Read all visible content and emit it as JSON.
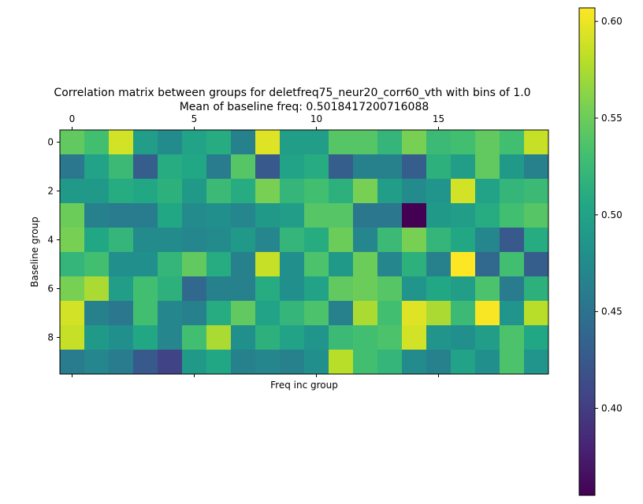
{
  "chart_data": {
    "type": "heatmap",
    "title_line1": "Correlation matrix between groups for deletfreq75_neur20_corr60_vth with bins of 1.0",
    "title_line2": "Mean of baseline freq: 0.5018417200716088",
    "xlabel": "Freq inc group",
    "ylabel": "Baseline group",
    "xticks": [
      "0",
      "5",
      "10",
      "15"
    ],
    "yticks": [
      "0",
      "2",
      "4",
      "6",
      "8"
    ],
    "colormap": "viridis",
    "vmin": 0.355,
    "vmax": 0.607,
    "colorbar_ticks": [
      "0.40",
      "0.45",
      "0.50",
      "0.55",
      "0.60"
    ],
    "values": [
      [
        0.545,
        0.53,
        0.59,
        0.495,
        0.475,
        0.5,
        0.51,
        0.465,
        0.595,
        0.495,
        0.495,
        0.54,
        0.54,
        0.52,
        0.555,
        0.525,
        0.53,
        0.545,
        0.53,
        0.585
      ],
      [
        0.455,
        0.5,
        0.525,
        0.43,
        0.51,
        0.505,
        0.46,
        0.54,
        0.425,
        0.5,
        0.51,
        0.43,
        0.465,
        0.465,
        0.43,
        0.515,
        0.495,
        0.545,
        0.49,
        0.465
      ],
      [
        0.49,
        0.49,
        0.51,
        0.505,
        0.515,
        0.49,
        0.525,
        0.51,
        0.555,
        0.52,
        0.53,
        0.515,
        0.555,
        0.495,
        0.475,
        0.485,
        0.59,
        0.5,
        0.52,
        0.525
      ],
      [
        0.55,
        0.465,
        0.46,
        0.46,
        0.505,
        0.475,
        0.48,
        0.47,
        0.49,
        0.495,
        0.54,
        0.54,
        0.455,
        0.455,
        0.355,
        0.49,
        0.495,
        0.51,
        0.53,
        0.54
      ],
      [
        0.555,
        0.505,
        0.52,
        0.475,
        0.475,
        0.47,
        0.475,
        0.49,
        0.47,
        0.52,
        0.51,
        0.55,
        0.47,
        0.525,
        0.555,
        0.52,
        0.505,
        0.47,
        0.425,
        0.51
      ],
      [
        0.52,
        0.53,
        0.48,
        0.48,
        0.52,
        0.545,
        0.51,
        0.465,
        0.585,
        0.48,
        0.535,
        0.49,
        0.55,
        0.47,
        0.515,
        0.465,
        0.607,
        0.44,
        0.53,
        0.43
      ],
      [
        0.555,
        0.575,
        0.495,
        0.53,
        0.515,
        0.44,
        0.465,
        0.465,
        0.51,
        0.48,
        0.5,
        0.545,
        0.55,
        0.54,
        0.485,
        0.505,
        0.495,
        0.535,
        0.46,
        0.515
      ],
      [
        0.59,
        0.465,
        0.455,
        0.53,
        0.47,
        0.465,
        0.51,
        0.545,
        0.5,
        0.52,
        0.535,
        0.465,
        0.575,
        0.53,
        0.595,
        0.575,
        0.525,
        0.605,
        0.485,
        0.58
      ],
      [
        0.585,
        0.49,
        0.48,
        0.505,
        0.47,
        0.53,
        0.575,
        0.48,
        0.515,
        0.5,
        0.485,
        0.525,
        0.53,
        0.535,
        0.59,
        0.485,
        0.48,
        0.495,
        0.535,
        0.505
      ],
      [
        0.46,
        0.47,
        0.46,
        0.425,
        0.405,
        0.49,
        0.505,
        0.465,
        0.47,
        0.465,
        0.48,
        0.58,
        0.53,
        0.52,
        0.475,
        0.465,
        0.5,
        0.48,
        0.535,
        0.485
      ]
    ]
  }
}
